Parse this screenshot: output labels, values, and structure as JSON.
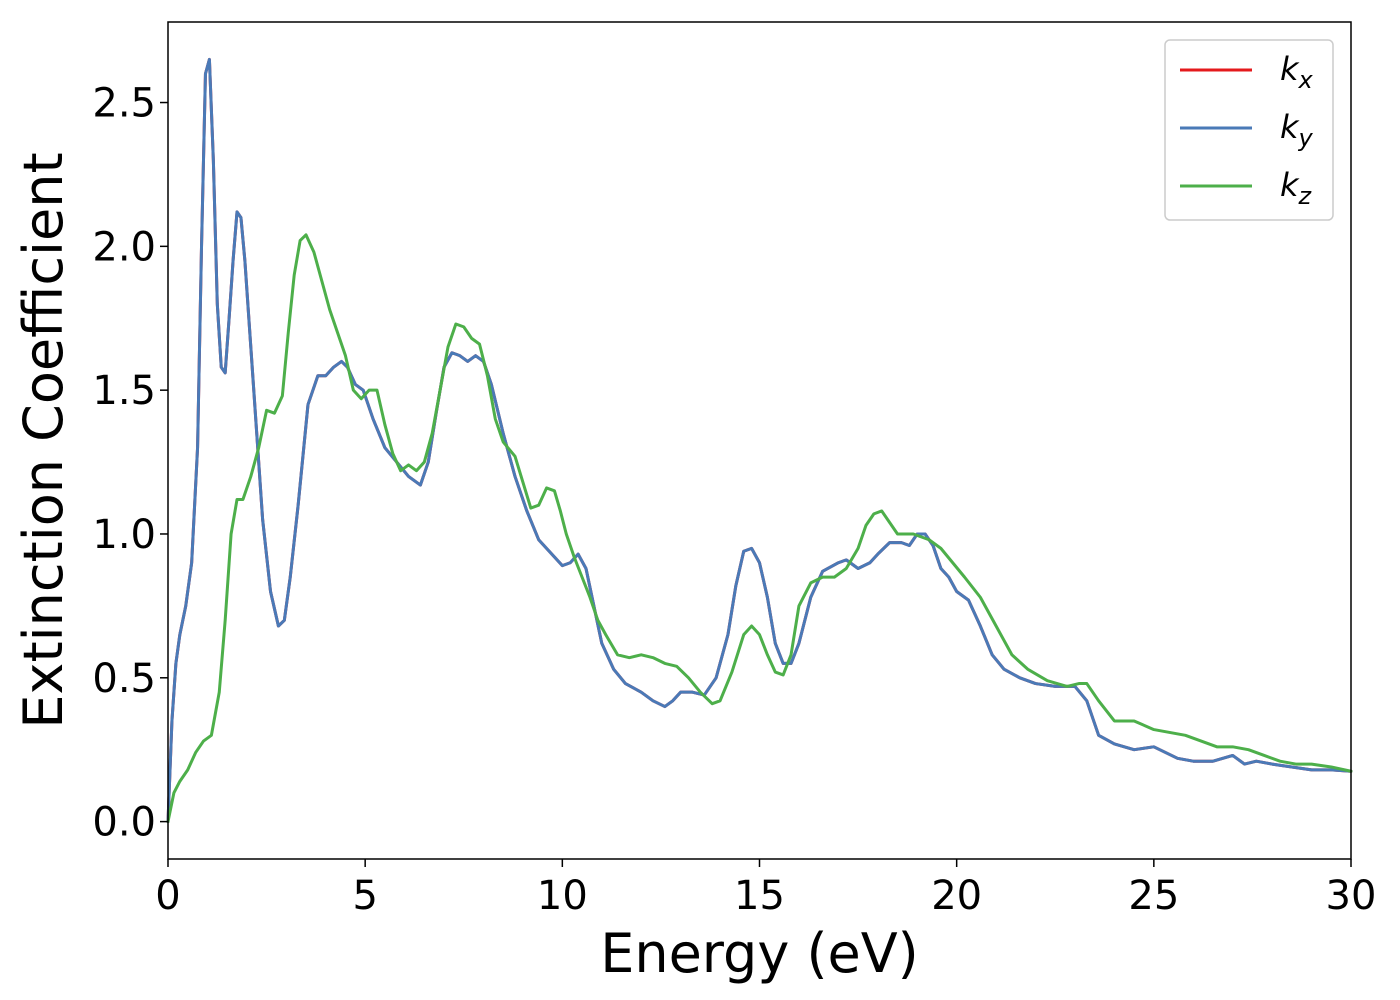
{
  "chart_data": {
    "type": "line",
    "title": "",
    "xlabel": "Energy (eV)",
    "ylabel": "Extinction Coefficient",
    "xlim": [
      0,
      30
    ],
    "ylim": [
      -0.13,
      2.78
    ],
    "xticks": [
      0,
      5,
      10,
      15,
      20,
      25,
      30
    ],
    "xtick_labels": [
      "0",
      "5",
      "10",
      "15",
      "20",
      "25",
      "30"
    ],
    "yticks": [
      0.0,
      0.5,
      1.0,
      1.5,
      2.0,
      2.5
    ],
    "ytick_labels": [
      "0.0",
      "0.5",
      "1.0",
      "1.5",
      "2.0",
      "2.5"
    ],
    "grid": false,
    "legend_position": "top-right",
    "series": [
      {
        "name": "k",
        "subscript": "x",
        "color": "#e41a1c",
        "x": [
          0,
          0.1,
          0.2,
          0.3,
          0.45,
          0.6,
          0.75,
          0.85,
          0.95,
          1.05,
          1.15,
          1.25,
          1.35,
          1.45,
          1.55,
          1.65,
          1.75,
          1.85,
          1.95,
          2.1,
          2.25,
          2.4,
          2.6,
          2.8,
          2.95,
          3.1,
          3.3,
          3.55,
          3.8,
          4.0,
          4.2,
          4.4,
          4.55,
          4.75,
          4.95,
          5.2,
          5.5,
          5.8,
          6.1,
          6.4,
          6.6,
          6.8,
          7.0,
          7.2,
          7.4,
          7.6,
          7.8,
          8.0,
          8.2,
          8.5,
          8.8,
          9.1,
          9.4,
          9.6,
          9.8,
          10.0,
          10.2,
          10.4,
          10.6,
          10.8,
          11.0,
          11.3,
          11.6,
          12.0,
          12.3,
          12.6,
          12.8,
          13.0,
          13.3,
          13.6,
          13.9,
          14.2,
          14.4,
          14.6,
          14.8,
          15.0,
          15.2,
          15.4,
          15.6,
          15.8,
          16.0,
          16.3,
          16.6,
          17.0,
          17.2,
          17.5,
          17.8,
          18.0,
          18.3,
          18.6,
          18.8,
          19.0,
          19.2,
          19.4,
          19.6,
          19.8,
          20.0,
          20.3,
          20.6,
          20.9,
          21.2,
          21.6,
          22.0,
          22.5,
          23.0,
          23.3,
          23.6,
          24.0,
          24.5,
          25.0,
          25.3,
          25.6,
          26.0,
          26.5,
          27.0,
          27.3,
          27.6,
          28.0,
          28.5,
          29.0,
          29.5,
          30.0
        ],
        "y": [
          0.0,
          0.35,
          0.55,
          0.65,
          0.75,
          0.9,
          1.3,
          2.0,
          2.6,
          2.65,
          2.3,
          1.8,
          1.58,
          1.56,
          1.75,
          1.95,
          2.12,
          2.1,
          1.95,
          1.65,
          1.35,
          1.05,
          0.8,
          0.68,
          0.7,
          0.85,
          1.1,
          1.45,
          1.55,
          1.55,
          1.58,
          1.6,
          1.58,
          1.52,
          1.5,
          1.4,
          1.3,
          1.25,
          1.2,
          1.17,
          1.25,
          1.42,
          1.58,
          1.63,
          1.62,
          1.6,
          1.62,
          1.6,
          1.52,
          1.35,
          1.2,
          1.08,
          0.98,
          0.95,
          0.92,
          0.89,
          0.9,
          0.93,
          0.88,
          0.75,
          0.62,
          0.53,
          0.48,
          0.45,
          0.42,
          0.4,
          0.42,
          0.45,
          0.45,
          0.44,
          0.5,
          0.65,
          0.82,
          0.94,
          0.95,
          0.9,
          0.78,
          0.62,
          0.55,
          0.55,
          0.62,
          0.78,
          0.87,
          0.9,
          0.91,
          0.88,
          0.9,
          0.93,
          0.97,
          0.97,
          0.96,
          1.0,
          1.0,
          0.96,
          0.88,
          0.85,
          0.8,
          0.77,
          0.68,
          0.58,
          0.53,
          0.5,
          0.48,
          0.47,
          0.47,
          0.42,
          0.3,
          0.27,
          0.25,
          0.26,
          0.24,
          0.22,
          0.21,
          0.21,
          0.23,
          0.2,
          0.21,
          0.2,
          0.19,
          0.18,
          0.18,
          0.175
        ]
      },
      {
        "name": "k",
        "subscript": "y",
        "color": "#4a7ab7",
        "x": [
          0,
          0.1,
          0.2,
          0.3,
          0.45,
          0.6,
          0.75,
          0.85,
          0.95,
          1.05,
          1.15,
          1.25,
          1.35,
          1.45,
          1.55,
          1.65,
          1.75,
          1.85,
          1.95,
          2.1,
          2.25,
          2.4,
          2.6,
          2.8,
          2.95,
          3.1,
          3.3,
          3.55,
          3.8,
          4.0,
          4.2,
          4.4,
          4.55,
          4.75,
          4.95,
          5.2,
          5.5,
          5.8,
          6.1,
          6.4,
          6.6,
          6.8,
          7.0,
          7.2,
          7.4,
          7.6,
          7.8,
          8.0,
          8.2,
          8.5,
          8.8,
          9.1,
          9.4,
          9.6,
          9.8,
          10.0,
          10.2,
          10.4,
          10.6,
          10.8,
          11.0,
          11.3,
          11.6,
          12.0,
          12.3,
          12.6,
          12.8,
          13.0,
          13.3,
          13.6,
          13.9,
          14.2,
          14.4,
          14.6,
          14.8,
          15.0,
          15.2,
          15.4,
          15.6,
          15.8,
          16.0,
          16.3,
          16.6,
          17.0,
          17.2,
          17.5,
          17.8,
          18.0,
          18.3,
          18.6,
          18.8,
          19.0,
          19.2,
          19.4,
          19.6,
          19.8,
          20.0,
          20.3,
          20.6,
          20.9,
          21.2,
          21.6,
          22.0,
          22.5,
          23.0,
          23.3,
          23.6,
          24.0,
          24.5,
          25.0,
          25.3,
          25.6,
          26.0,
          26.5,
          27.0,
          27.3,
          27.6,
          28.0,
          28.5,
          29.0,
          29.5,
          30.0
        ],
        "y": [
          0.0,
          0.35,
          0.55,
          0.65,
          0.75,
          0.9,
          1.3,
          2.0,
          2.6,
          2.65,
          2.3,
          1.8,
          1.58,
          1.56,
          1.75,
          1.95,
          2.12,
          2.1,
          1.95,
          1.65,
          1.35,
          1.05,
          0.8,
          0.68,
          0.7,
          0.85,
          1.1,
          1.45,
          1.55,
          1.55,
          1.58,
          1.6,
          1.58,
          1.52,
          1.5,
          1.4,
          1.3,
          1.25,
          1.2,
          1.17,
          1.25,
          1.42,
          1.58,
          1.63,
          1.62,
          1.6,
          1.62,
          1.6,
          1.52,
          1.35,
          1.2,
          1.08,
          0.98,
          0.95,
          0.92,
          0.89,
          0.9,
          0.93,
          0.88,
          0.75,
          0.62,
          0.53,
          0.48,
          0.45,
          0.42,
          0.4,
          0.42,
          0.45,
          0.45,
          0.44,
          0.5,
          0.65,
          0.82,
          0.94,
          0.95,
          0.9,
          0.78,
          0.62,
          0.55,
          0.55,
          0.62,
          0.78,
          0.87,
          0.9,
          0.91,
          0.88,
          0.9,
          0.93,
          0.97,
          0.97,
          0.96,
          1.0,
          1.0,
          0.96,
          0.88,
          0.85,
          0.8,
          0.77,
          0.68,
          0.58,
          0.53,
          0.5,
          0.48,
          0.47,
          0.47,
          0.42,
          0.3,
          0.27,
          0.25,
          0.26,
          0.24,
          0.22,
          0.21,
          0.21,
          0.23,
          0.2,
          0.21,
          0.2,
          0.19,
          0.18,
          0.18,
          0.175
        ]
      },
      {
        "name": "k",
        "subscript": "z",
        "color": "#4daf4a",
        "x": [
          0,
          0.15,
          0.3,
          0.5,
          0.7,
          0.9,
          1.1,
          1.3,
          1.45,
          1.6,
          1.75,
          1.9,
          2.1,
          2.3,
          2.5,
          2.7,
          2.9,
          3.05,
          3.2,
          3.35,
          3.5,
          3.7,
          3.9,
          4.1,
          4.3,
          4.5,
          4.7,
          4.9,
          5.1,
          5.3,
          5.5,
          5.7,
          5.9,
          6.1,
          6.3,
          6.5,
          6.7,
          6.9,
          7.1,
          7.3,
          7.5,
          7.7,
          7.9,
          8.1,
          8.3,
          8.5,
          8.8,
          9.0,
          9.2,
          9.4,
          9.6,
          9.8,
          9.95,
          10.1,
          10.3,
          10.5,
          10.7,
          10.9,
          11.1,
          11.4,
          11.7,
          12.0,
          12.3,
          12.6,
          12.9,
          13.2,
          13.5,
          13.8,
          14.0,
          14.3,
          14.6,
          14.8,
          15.0,
          15.2,
          15.4,
          15.6,
          15.8,
          16.0,
          16.3,
          16.6,
          16.9,
          17.2,
          17.5,
          17.7,
          17.9,
          18.1,
          18.3,
          18.5,
          18.7,
          18.9,
          19.1,
          19.3,
          19.6,
          19.9,
          20.2,
          20.6,
          21.0,
          21.4,
          21.8,
          22.3,
          22.8,
          23.1,
          23.3,
          23.6,
          24.0,
          24.5,
          25.0,
          25.4,
          25.8,
          26.2,
          26.6,
          27.0,
          27.4,
          27.8,
          28.2,
          28.6,
          29.0,
          29.5,
          30.0
        ],
        "y": [
          0.0,
          0.1,
          0.14,
          0.18,
          0.24,
          0.28,
          0.3,
          0.45,
          0.7,
          1.0,
          1.12,
          1.12,
          1.2,
          1.3,
          1.43,
          1.42,
          1.48,
          1.7,
          1.9,
          2.02,
          2.04,
          1.98,
          1.88,
          1.78,
          1.7,
          1.62,
          1.5,
          1.47,
          1.5,
          1.5,
          1.38,
          1.28,
          1.22,
          1.24,
          1.22,
          1.25,
          1.35,
          1.5,
          1.65,
          1.73,
          1.72,
          1.68,
          1.66,
          1.55,
          1.4,
          1.32,
          1.27,
          1.18,
          1.09,
          1.1,
          1.16,
          1.15,
          1.08,
          1.0,
          0.92,
          0.85,
          0.78,
          0.7,
          0.65,
          0.58,
          0.57,
          0.58,
          0.57,
          0.55,
          0.54,
          0.5,
          0.45,
          0.41,
          0.42,
          0.52,
          0.65,
          0.68,
          0.65,
          0.58,
          0.52,
          0.51,
          0.58,
          0.75,
          0.83,
          0.85,
          0.85,
          0.88,
          0.95,
          1.03,
          1.07,
          1.08,
          1.04,
          1.0,
          1.0,
          1.0,
          0.99,
          0.98,
          0.95,
          0.9,
          0.85,
          0.78,
          0.68,
          0.58,
          0.53,
          0.49,
          0.47,
          0.48,
          0.48,
          0.42,
          0.35,
          0.35,
          0.32,
          0.31,
          0.3,
          0.28,
          0.26,
          0.26,
          0.25,
          0.23,
          0.21,
          0.2,
          0.2,
          0.19,
          0.175
        ]
      }
    ]
  }
}
